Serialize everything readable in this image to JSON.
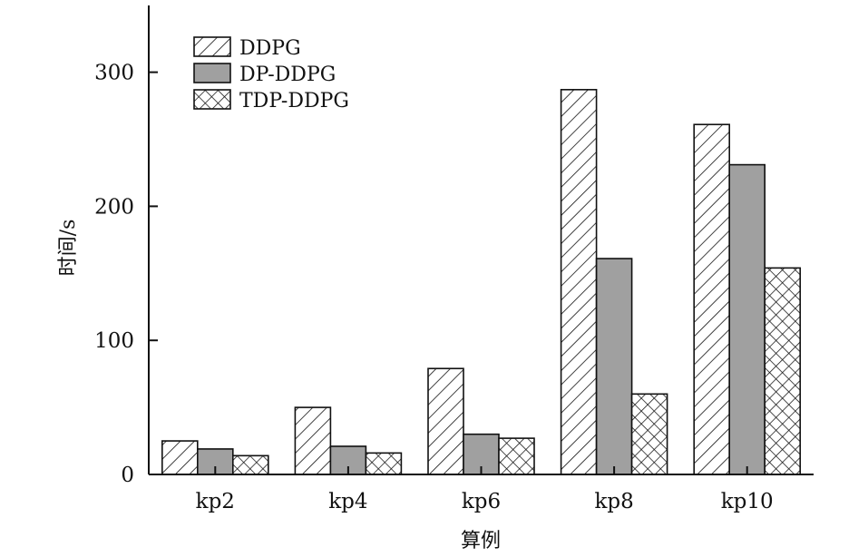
{
  "chart_data": {
    "type": "bar",
    "title": "",
    "xlabel": "算例",
    "ylabel": "时间/s",
    "categories": [
      "kp2",
      "kp4",
      "kp6",
      "kp8",
      "kp10"
    ],
    "ylim": [
      0,
      350
    ],
    "yticks": [
      0,
      100,
      200,
      300
    ],
    "grid": false,
    "legend_position": "top-left",
    "series": [
      {
        "name": "DDPG",
        "values": [
          25,
          50,
          79,
          287,
          261
        ],
        "pattern": "diagonal-hatch",
        "color": "#ffffff"
      },
      {
        "name": "DP-DDPG",
        "values": [
          19,
          21,
          30,
          161,
          231
        ],
        "pattern": "solid",
        "color": "#a0a0a0"
      },
      {
        "name": "TDP-DDPG",
        "values": [
          14,
          16,
          27,
          60,
          154
        ],
        "pattern": "crosshatch",
        "color": "#ffffff"
      }
    ]
  }
}
